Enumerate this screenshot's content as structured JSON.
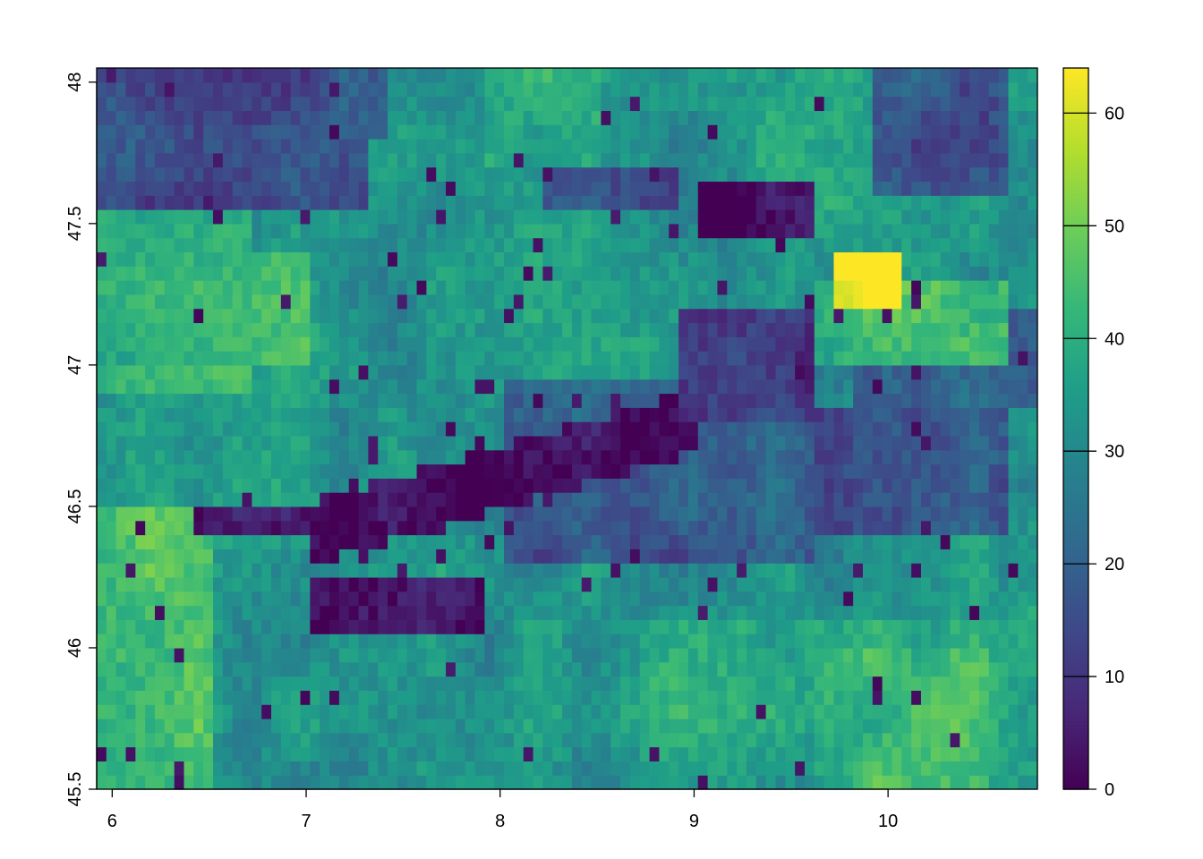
{
  "chart_data": {
    "type": "heatmap",
    "title": "",
    "xlabel": "",
    "ylabel": "",
    "xlim": [
      5.92,
      10.77
    ],
    "ylim": [
      45.5,
      48.05
    ],
    "x_ticks": [
      "6",
      "7",
      "8",
      "9",
      "10"
    ],
    "y_ticks": [
      "45.5",
      "46",
      "46.5",
      "47",
      "47.5",
      "48"
    ],
    "colorbar": {
      "range": [
        0,
        64
      ],
      "ticks": [
        "0",
        "10",
        "20",
        "30",
        "40",
        "50",
        "60"
      ],
      "palette": "viridis"
    },
    "grid": "off",
    "legend": "right colorbar",
    "regions_approx": [
      {
        "area": "north-west",
        "value": 15
      },
      {
        "area": "north-central",
        "value": 35
      },
      {
        "area": "west",
        "value": 42
      },
      {
        "area": "alpine ridge (central)",
        "value": 1
      },
      {
        "area": "north-east lake",
        "value": 63
      },
      {
        "area": "east",
        "value": 40
      },
      {
        "area": "south",
        "value": 38
      }
    ]
  }
}
